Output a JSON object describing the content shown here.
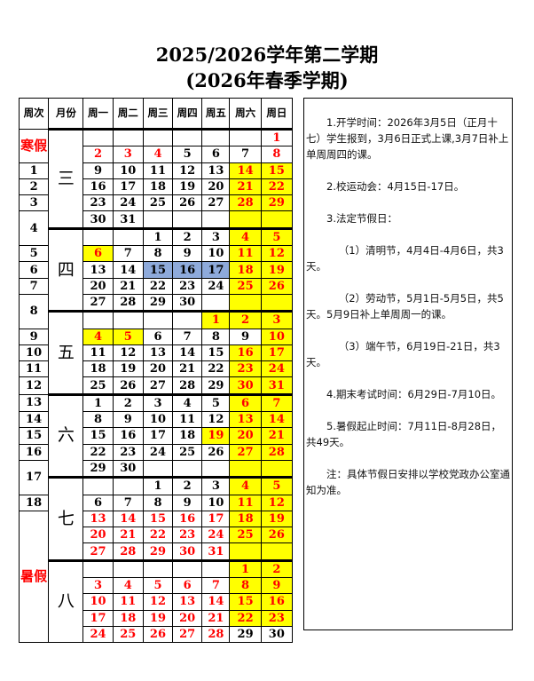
{
  "title": "2025/2026学年第二学期",
  "subtitle": "(2026年春季学期)",
  "colors": {
    "holiday_text": "#ff0000",
    "weekend_fill": "#ffff00",
    "sports_fill": "#8eaadb"
  },
  "headers": [
    "周次",
    "月份",
    "周一",
    "周二",
    "周三",
    "周四",
    "周五",
    "周六",
    "周日"
  ],
  "weeks": [
    {
      "label": "寒假",
      "rows": 2,
      "red": true
    },
    {
      "label": "1",
      "rows": 1
    },
    {
      "label": "2",
      "rows": 1
    },
    {
      "label": "3",
      "rows": 1
    },
    {
      "label": "4",
      "rows": 2
    },
    {
      "label": "5",
      "rows": 1
    },
    {
      "label": "6",
      "rows": 1
    },
    {
      "label": "7",
      "rows": 1
    },
    {
      "label": "8",
      "rows": 2
    },
    {
      "label": "9",
      "rows": 1
    },
    {
      "label": "10",
      "rows": 1
    },
    {
      "label": "11",
      "rows": 1
    },
    {
      "label": "12",
      "rows": 1
    },
    {
      "label": "13",
      "rows": 1
    },
    {
      "label": "14",
      "rows": 1
    },
    {
      "label": "15",
      "rows": 1
    },
    {
      "label": "16",
      "rows": 1
    },
    {
      "label": "17",
      "rows": 2
    },
    {
      "label": "18",
      "rows": 1
    },
    {
      "label": "暑假",
      "rows": 8,
      "red": true
    }
  ],
  "months": [
    {
      "name": "三",
      "rows": [
        [
          [
            "",
            ""
          ],
          [
            "",
            ""
          ],
          [
            "",
            ""
          ],
          [
            "",
            ""
          ],
          [
            "",
            ""
          ],
          [
            "",
            ""
          ],
          [
            "1",
            "r"
          ]
        ],
        [
          [
            "2",
            "r"
          ],
          [
            "3",
            "r"
          ],
          [
            "4",
            "r"
          ],
          [
            "5",
            ""
          ],
          [
            "6",
            ""
          ],
          [
            "7",
            ""
          ],
          [
            "8",
            "r"
          ]
        ],
        [
          [
            "9",
            ""
          ],
          [
            "10",
            ""
          ],
          [
            "11",
            ""
          ],
          [
            "12",
            ""
          ],
          [
            "13",
            ""
          ],
          [
            "14",
            "ry"
          ],
          [
            "15",
            "ry"
          ]
        ],
        [
          [
            "16",
            ""
          ],
          [
            "17",
            ""
          ],
          [
            "18",
            ""
          ],
          [
            "19",
            ""
          ],
          [
            "20",
            ""
          ],
          [
            "21",
            "ry"
          ],
          [
            "22",
            "ry"
          ]
        ],
        [
          [
            "23",
            ""
          ],
          [
            "24",
            ""
          ],
          [
            "25",
            ""
          ],
          [
            "26",
            ""
          ],
          [
            "27",
            ""
          ],
          [
            "28",
            "ry"
          ],
          [
            "29",
            "ry"
          ]
        ],
        [
          [
            "30",
            ""
          ],
          [
            "31",
            ""
          ],
          [
            "",
            ""
          ],
          [
            "",
            ""
          ],
          [
            "",
            ""
          ],
          [
            "",
            "y"
          ],
          [
            "",
            "y"
          ]
        ]
      ]
    },
    {
      "name": "四",
      "rows": [
        [
          [
            "",
            ""
          ],
          [
            "",
            ""
          ],
          [
            "1",
            ""
          ],
          [
            "2",
            ""
          ],
          [
            "3",
            ""
          ],
          [
            "4",
            "ry"
          ],
          [
            "5",
            "ry"
          ]
        ],
        [
          [
            "6",
            "ry"
          ],
          [
            "7",
            ""
          ],
          [
            "8",
            ""
          ],
          [
            "9",
            ""
          ],
          [
            "10",
            ""
          ],
          [
            "11",
            "ry"
          ],
          [
            "12",
            "ry"
          ]
        ],
        [
          [
            "13",
            ""
          ],
          [
            "14",
            ""
          ],
          [
            "15",
            "b"
          ],
          [
            "16",
            "b"
          ],
          [
            "17",
            "b"
          ],
          [
            "18",
            "ry"
          ],
          [
            "19",
            "ry"
          ]
        ],
        [
          [
            "20",
            ""
          ],
          [
            "21",
            ""
          ],
          [
            "22",
            ""
          ],
          [
            "23",
            ""
          ],
          [
            "24",
            ""
          ],
          [
            "25",
            "ry"
          ],
          [
            "26",
            "ry"
          ]
        ],
        [
          [
            "27",
            ""
          ],
          [
            "28",
            ""
          ],
          [
            "29",
            ""
          ],
          [
            "30",
            ""
          ],
          [
            "",
            ""
          ],
          [
            "",
            "y"
          ],
          [
            "",
            "y"
          ]
        ]
      ]
    },
    {
      "name": "五",
      "rows": [
        [
          [
            "",
            ""
          ],
          [
            "",
            ""
          ],
          [
            "",
            ""
          ],
          [
            "",
            ""
          ],
          [
            "1",
            "ry"
          ],
          [
            "2",
            "ry"
          ],
          [
            "3",
            "ry"
          ]
        ],
        [
          [
            "4",
            "ry"
          ],
          [
            "5",
            "ry"
          ],
          [
            "6",
            ""
          ],
          [
            "7",
            ""
          ],
          [
            "8",
            ""
          ],
          [
            "9",
            ""
          ],
          [
            "10",
            "ry"
          ]
        ],
        [
          [
            "11",
            ""
          ],
          [
            "12",
            ""
          ],
          [
            "13",
            ""
          ],
          [
            "14",
            ""
          ],
          [
            "15",
            ""
          ],
          [
            "16",
            "ry"
          ],
          [
            "17",
            "ry"
          ]
        ],
        [
          [
            "18",
            ""
          ],
          [
            "19",
            ""
          ],
          [
            "20",
            ""
          ],
          [
            "21",
            ""
          ],
          [
            "22",
            ""
          ],
          [
            "23",
            "ry"
          ],
          [
            "24",
            "ry"
          ]
        ],
        [
          [
            "25",
            ""
          ],
          [
            "26",
            ""
          ],
          [
            "27",
            ""
          ],
          [
            "28",
            ""
          ],
          [
            "29",
            ""
          ],
          [
            "30",
            "ry"
          ],
          [
            "31",
            "ry"
          ]
        ]
      ]
    },
    {
      "name": "六",
      "rows": [
        [
          [
            "1",
            ""
          ],
          [
            "2",
            ""
          ],
          [
            "3",
            ""
          ],
          [
            "4",
            ""
          ],
          [
            "5",
            ""
          ],
          [
            "6",
            "ry"
          ],
          [
            "7",
            "ry"
          ]
        ],
        [
          [
            "8",
            ""
          ],
          [
            "9",
            ""
          ],
          [
            "10",
            ""
          ],
          [
            "11",
            ""
          ],
          [
            "12",
            ""
          ],
          [
            "13",
            "ry"
          ],
          [
            "14",
            "ry"
          ]
        ],
        [
          [
            "15",
            ""
          ],
          [
            "16",
            ""
          ],
          [
            "17",
            ""
          ],
          [
            "18",
            ""
          ],
          [
            "19",
            "ry"
          ],
          [
            "20",
            "ry"
          ],
          [
            "21",
            "ry"
          ]
        ],
        [
          [
            "22",
            ""
          ],
          [
            "23",
            ""
          ],
          [
            "24",
            ""
          ],
          [
            "25",
            ""
          ],
          [
            "26",
            ""
          ],
          [
            "27",
            "ry"
          ],
          [
            "28",
            "ry"
          ]
        ],
        [
          [
            "29",
            ""
          ],
          [
            "30",
            ""
          ],
          [
            "",
            ""
          ],
          [
            "",
            ""
          ],
          [
            "",
            ""
          ],
          [
            "",
            "y"
          ],
          [
            "",
            "y"
          ]
        ]
      ]
    },
    {
      "name": "七",
      "rows": [
        [
          [
            "",
            ""
          ],
          [
            "",
            ""
          ],
          [
            "1",
            ""
          ],
          [
            "2",
            ""
          ],
          [
            "3",
            ""
          ],
          [
            "4",
            "ry"
          ],
          [
            "5",
            "ry"
          ]
        ],
        [
          [
            "6",
            ""
          ],
          [
            "7",
            ""
          ],
          [
            "8",
            ""
          ],
          [
            "9",
            ""
          ],
          [
            "10",
            ""
          ],
          [
            "11",
            "ry"
          ],
          [
            "12",
            "ry"
          ]
        ],
        [
          [
            "13",
            "r"
          ],
          [
            "14",
            "r"
          ],
          [
            "15",
            "r"
          ],
          [
            "16",
            "r"
          ],
          [
            "17",
            "r"
          ],
          [
            "18",
            "ry"
          ],
          [
            "19",
            "ry"
          ]
        ],
        [
          [
            "20",
            "r"
          ],
          [
            "21",
            "r"
          ],
          [
            "22",
            "r"
          ],
          [
            "23",
            "r"
          ],
          [
            "24",
            "r"
          ],
          [
            "25",
            "ry"
          ],
          [
            "26",
            "ry"
          ]
        ],
        [
          [
            "27",
            "r"
          ],
          [
            "28",
            "r"
          ],
          [
            "29",
            "r"
          ],
          [
            "30",
            "r"
          ],
          [
            "31",
            "r"
          ],
          [
            "",
            "y"
          ],
          [
            "",
            "y"
          ]
        ]
      ]
    },
    {
      "name": "八",
      "rows": [
        [
          [
            "",
            ""
          ],
          [
            "",
            ""
          ],
          [
            "",
            ""
          ],
          [
            "",
            ""
          ],
          [
            "",
            ""
          ],
          [
            "1",
            "ry"
          ],
          [
            "2",
            "ry"
          ]
        ],
        [
          [
            "3",
            "r"
          ],
          [
            "4",
            "r"
          ],
          [
            "5",
            "r"
          ],
          [
            "6",
            "r"
          ],
          [
            "7",
            "r"
          ],
          [
            "8",
            "ry"
          ],
          [
            "9",
            "ry"
          ]
        ],
        [
          [
            "10",
            "r"
          ],
          [
            "11",
            "r"
          ],
          [
            "12",
            "r"
          ],
          [
            "13",
            "r"
          ],
          [
            "14",
            "r"
          ],
          [
            "15",
            "ry"
          ],
          [
            "16",
            "ry"
          ]
        ],
        [
          [
            "17",
            "r"
          ],
          [
            "18",
            "r"
          ],
          [
            "19",
            "r"
          ],
          [
            "20",
            "r"
          ],
          [
            "21",
            "r"
          ],
          [
            "22",
            "ry"
          ],
          [
            "23",
            "ry"
          ]
        ],
        [
          [
            "24",
            "r"
          ],
          [
            "25",
            "r"
          ],
          [
            "26",
            "r"
          ],
          [
            "27",
            "r"
          ],
          [
            "28",
            "r"
          ],
          [
            "29",
            ""
          ],
          [
            "30",
            ""
          ]
        ]
      ]
    }
  ],
  "notes": [
    {
      "text": "1.开学时间：2026年3月5日（正月十七）学生报到，3月6日正式上课,3月7日补上单周周四的课。",
      "sub": false
    },
    {
      "text": "2.校运动会：4月15日-17日。",
      "sub": false
    },
    {
      "text": "3.法定节假日：",
      "sub": false
    },
    {
      "text": "（1）清明节，4月4日-4月6日，共3天。",
      "sub": true
    },
    {
      "text": "（2）劳动节，5月1日-5月5日，共5天。5月9日补上单周周一的课。",
      "sub": true
    },
    {
      "text": "（3）端午节，6月19日-21日，共3天。",
      "sub": true
    },
    {
      "text": "4.期末考试时间：6月29日-7月10日。",
      "sub": false
    },
    {
      "text": "5.暑假起止时间：7月11日-8月28日，共49天。",
      "sub": false
    },
    {
      "text": "注：具体节假日安排以学校党政办公室通知为准。",
      "sub": false
    }
  ]
}
